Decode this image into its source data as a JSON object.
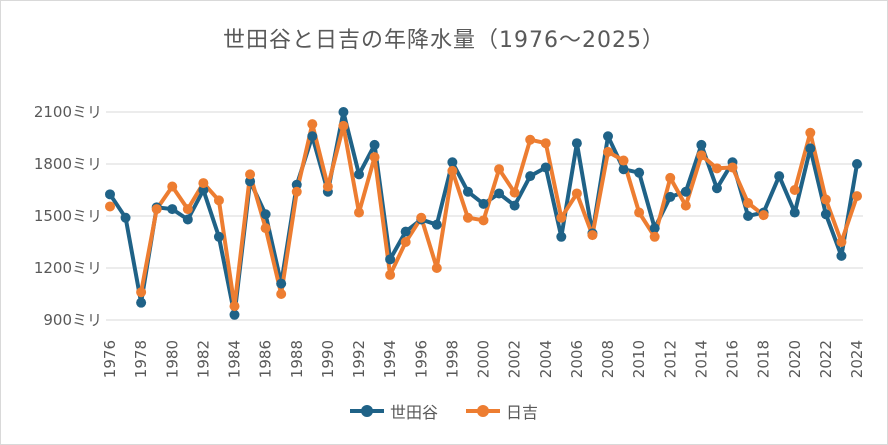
{
  "chart_data": {
    "type": "line",
    "title": "世田谷と日吉の年降水量（1976～2025）",
    "xlabel": "",
    "ylabel": "",
    "ylim": [
      900,
      2100
    ],
    "yticks": [
      900,
      1200,
      1500,
      1800,
      2100
    ],
    "ytick_suffix": "ミリ",
    "x": [
      1976,
      1977,
      1978,
      1979,
      1980,
      1981,
      1982,
      1983,
      1984,
      1985,
      1986,
      1987,
      1988,
      1989,
      1990,
      1991,
      1992,
      1993,
      1994,
      1995,
      1996,
      1997,
      1998,
      1999,
      2000,
      2001,
      2002,
      2003,
      2004,
      2005,
      2006,
      2007,
      2008,
      2009,
      2010,
      2011,
      2012,
      2013,
      2014,
      2015,
      2016,
      2017,
      2018,
      2019,
      2020,
      2021,
      2022,
      2023,
      2024
    ],
    "xtick_labels": [
      "1976",
      "1978",
      "1980",
      "1982",
      "1984",
      "1986",
      "1988",
      "1990",
      "1992",
      "1994",
      "1996",
      "1998",
      "2000",
      "2002",
      "2004",
      "2006",
      "2008",
      "2010",
      "2012",
      "2014",
      "2016",
      "2018",
      "2020",
      "2022",
      "2024"
    ],
    "grid": true,
    "legend": "bottom",
    "series": [
      {
        "name": "世田谷",
        "color": "#1f6287",
        "values": [
          1625,
          1490,
          1000,
          1550,
          1540,
          1480,
          1650,
          1380,
          930,
          1700,
          1510,
          1110,
          1680,
          1960,
          1640,
          2100,
          1740,
          1910,
          1250,
          1410,
          1480,
          1450,
          1810,
          1640,
          1570,
          1630,
          1560,
          1730,
          1780,
          1380,
          1920,
          1400,
          1960,
          1770,
          1750,
          1430,
          1610,
          1640,
          1910,
          1660,
          1810,
          1500,
          1520,
          1730,
          1520,
          1890,
          1510,
          1270,
          1800
        ]
      },
      {
        "name": "日吉",
        "color": "#ed7d31",
        "values": [
          1555,
          null,
          1060,
          1540,
          1670,
          1540,
          1690,
          1590,
          980,
          1740,
          1430,
          1050,
          1640,
          2030,
          1670,
          2020,
          1520,
          1840,
          1160,
          1350,
          1490,
          1200,
          1760,
          1490,
          1475,
          1770,
          1635,
          1940,
          1920,
          1490,
          1630,
          1390,
          1870,
          1820,
          1520,
          1380,
          1720,
          1560,
          1850,
          1775,
          1780,
          1575,
          1505,
          null,
          1650,
          1980,
          1595,
          1350,
          1615
        ]
      }
    ]
  }
}
